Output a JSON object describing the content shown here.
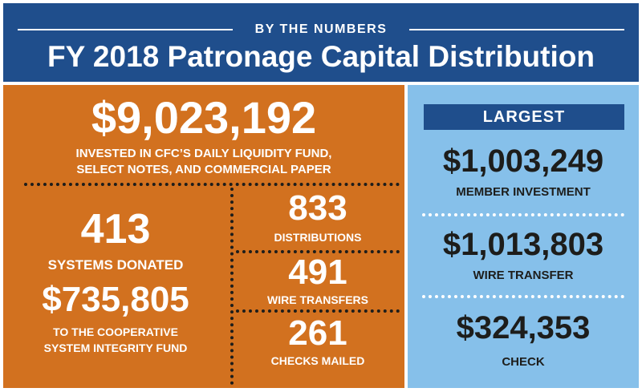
{
  "header": {
    "kicker": "BY THE NUMBERS",
    "title": "FY 2018 Patronage Capital Distribution"
  },
  "invested": {
    "amount": "$9,023,192",
    "label_line1": "INVESTED IN CFC’S DAILY LIQUIDITY FUND,",
    "label_line2": "SELECT NOTES, AND COMMERCIAL PAPER"
  },
  "donated": {
    "count": "413",
    "count_label": "SYSTEMS DONATED",
    "amount": "$735,805",
    "amount_label_line1": "TO THE COOPERATIVE",
    "amount_label_line2": "SYSTEM INTEGRITY FUND"
  },
  "stats": [
    {
      "value": "833",
      "label": "DISTRIBUTIONS"
    },
    {
      "value": "491",
      "label": "WIRE TRANSFERS"
    },
    {
      "value": "261",
      "label": "CHECKS MAILED"
    }
  ],
  "largest": {
    "heading": "LARGEST",
    "items": [
      {
        "amount": "$1,003,249",
        "label": "MEMBER INVESTMENT"
      },
      {
        "amount": "$1,013,803",
        "label": "WIRE TRANSFER"
      },
      {
        "amount": "$324,353",
        "label": "CHECK"
      }
    ]
  },
  "colors": {
    "navy": "#1f4e8c",
    "orange": "#d2711f",
    "light_blue": "#86c0ea",
    "dark_text": "#1d1d1b"
  }
}
